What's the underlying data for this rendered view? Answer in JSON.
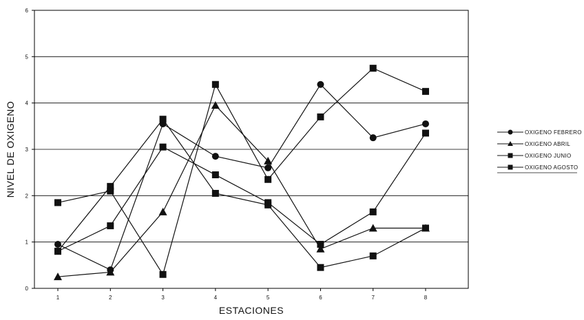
{
  "chart_data": {
    "type": "line",
    "xlabel": "ESTACIONES",
    "ylabel": "NIVEL DE OXIGENO",
    "x": [
      1,
      2,
      3,
      4,
      5,
      6,
      7,
      8
    ],
    "ylim": [
      0,
      6
    ],
    "yticks": [
      0,
      1,
      2,
      3,
      4,
      5,
      6
    ],
    "grid": "horizontal",
    "legend_position": "right",
    "series": [
      {
        "name": "OXIGENO FEBRERO",
        "marker": "circle",
        "values": [
          0.95,
          0.4,
          3.55,
          2.85,
          2.6,
          4.4,
          3.25,
          3.55
        ]
      },
      {
        "name": "OXIGENO ABRIL",
        "marker": "triangle",
        "values": [
          0.25,
          0.35,
          1.65,
          3.95,
          2.75,
          0.85,
          1.3,
          1.3
        ]
      },
      {
        "name": "OXIGENO JUNIO",
        "marker": "square",
        "values": [
          0.8,
          2.2,
          3.65,
          2.05,
          1.8,
          0.45,
          0.7,
          1.3
        ]
      },
      {
        "name": "OXIGENO AGOSTO",
        "marker": "square",
        "values": [
          1.85,
          2.1,
          0.3,
          4.4,
          2.35,
          3.7,
          4.75,
          4.25
        ]
      },
      {
        "name": "",
        "marker": "square",
        "values": [
          0.8,
          1.35,
          3.05,
          2.45,
          1.85,
          0.95,
          1.65,
          3.35
        ]
      }
    ]
  }
}
